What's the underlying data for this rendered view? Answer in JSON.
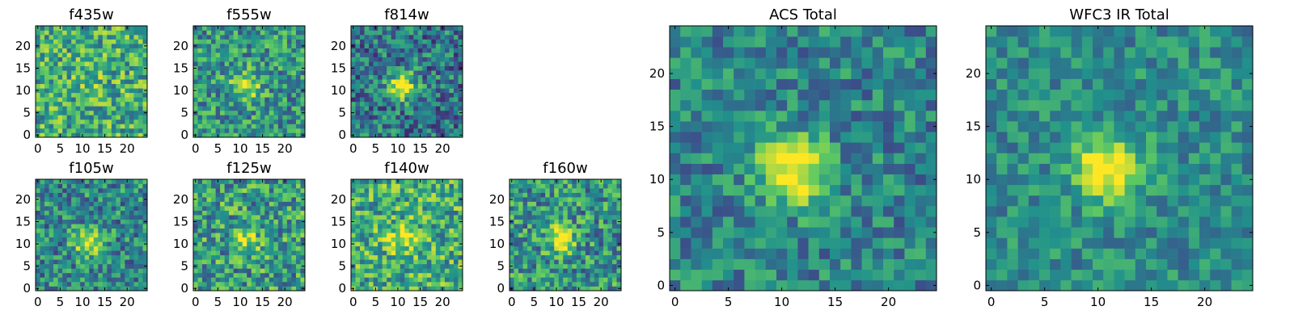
{
  "figure": {
    "title": "",
    "colormap": [
      "#440154",
      "#3b528b",
      "#21918c",
      "#5ec962",
      "#fde725"
    ]
  },
  "chart_data": [
    {
      "type": "heatmap",
      "title": "f435w",
      "grid_size": 25,
      "xlim": [
        0,
        24
      ],
      "ylim": [
        0,
        24
      ],
      "xticks": [
        0,
        5,
        10,
        15,
        20
      ],
      "yticks": [
        0,
        5,
        10,
        15,
        20
      ],
      "xlabel": "",
      "ylabel": "",
      "peak": {
        "x": 12,
        "y": 12,
        "relative_intensity": 0.1
      },
      "noise": 0.3,
      "background": 0.62
    },
    {
      "type": "heatmap",
      "title": "f555w",
      "grid_size": 25,
      "xlim": [
        0,
        24
      ],
      "ylim": [
        0,
        24
      ],
      "xticks": [
        0,
        5,
        10,
        15,
        20
      ],
      "yticks": [
        0,
        5,
        10,
        15,
        20
      ],
      "xlabel": "",
      "ylabel": "",
      "peak": {
        "x": 11,
        "y": 11,
        "relative_intensity": 0.45
      },
      "noise": 0.28,
      "background": 0.52
    },
    {
      "type": "heatmap",
      "title": "f814w",
      "grid_size": 25,
      "xlim": [
        0,
        24
      ],
      "ylim": [
        0,
        24
      ],
      "xticks": [
        0,
        5,
        10,
        15,
        20
      ],
      "yticks": [
        0,
        5,
        10,
        15,
        20
      ],
      "xlabel": "",
      "ylabel": "",
      "peak": {
        "x": 11,
        "y": 11,
        "relative_intensity": 0.6
      },
      "noise": 0.28,
      "background": 0.4
    },
    {
      "type": "heatmap",
      "title": "f105w",
      "grid_size": 25,
      "xlim": [
        0,
        24
      ],
      "ylim": [
        0,
        24
      ],
      "xticks": [
        0,
        5,
        10,
        15,
        20
      ],
      "yticks": [
        0,
        5,
        10,
        15,
        20
      ],
      "xlabel": "",
      "ylabel": "",
      "peak": {
        "x": 11,
        "y": 10,
        "relative_intensity": 0.45
      },
      "noise": 0.28,
      "background": 0.48
    },
    {
      "type": "heatmap",
      "title": "f125w",
      "grid_size": 25,
      "xlim": [
        0,
        24
      ],
      "ylim": [
        0,
        24
      ],
      "xticks": [
        0,
        5,
        10,
        15,
        20
      ],
      "yticks": [
        0,
        5,
        10,
        15,
        20
      ],
      "xlabel": "",
      "ylabel": "",
      "peak": {
        "x": 11,
        "y": 11,
        "relative_intensity": 0.35
      },
      "noise": 0.32,
      "background": 0.55
    },
    {
      "type": "heatmap",
      "title": "f140w",
      "grid_size": 25,
      "xlim": [
        0,
        24
      ],
      "ylim": [
        0,
        24
      ],
      "xticks": [
        0,
        5,
        10,
        15,
        20
      ],
      "yticks": [
        0,
        5,
        10,
        15,
        20
      ],
      "xlabel": "",
      "ylabel": "",
      "peak": {
        "x": 11,
        "y": 11,
        "relative_intensity": 0.35
      },
      "noise": 0.3,
      "background": 0.62
    },
    {
      "type": "heatmap",
      "title": "f160w",
      "grid_size": 25,
      "xlim": [
        0,
        24
      ],
      "ylim": [
        0,
        24
      ],
      "xticks": [
        0,
        5,
        10,
        15,
        20
      ],
      "yticks": [
        0,
        5,
        10,
        15,
        20
      ],
      "xlabel": "",
      "ylabel": "",
      "peak": {
        "x": 11,
        "y": 11,
        "relative_intensity": 0.45
      },
      "noise": 0.3,
      "background": 0.52
    },
    {
      "type": "heatmap",
      "title": "ACS Total",
      "grid_size": 25,
      "xlim": [
        0,
        24
      ],
      "ylim": [
        0,
        24
      ],
      "xticks": [
        0,
        5,
        10,
        15,
        20
      ],
      "yticks": [
        0,
        5,
        10,
        15,
        20
      ],
      "xlabel": "",
      "ylabel": "",
      "peak": {
        "x": 11,
        "y": 11,
        "relative_intensity": 0.7
      },
      "noise": 0.22,
      "background": 0.45
    },
    {
      "type": "heatmap",
      "title": "WFC3 IR Total",
      "grid_size": 25,
      "xlim": [
        0,
        24
      ],
      "ylim": [
        0,
        24
      ],
      "xticks": [
        0,
        5,
        10,
        15,
        20
      ],
      "yticks": [
        0,
        5,
        10,
        15,
        20
      ],
      "xlabel": "",
      "ylabel": "",
      "peak": {
        "x": 11,
        "y": 11,
        "relative_intensity": 0.6
      },
      "noise": 0.18,
      "background": 0.48
    }
  ]
}
